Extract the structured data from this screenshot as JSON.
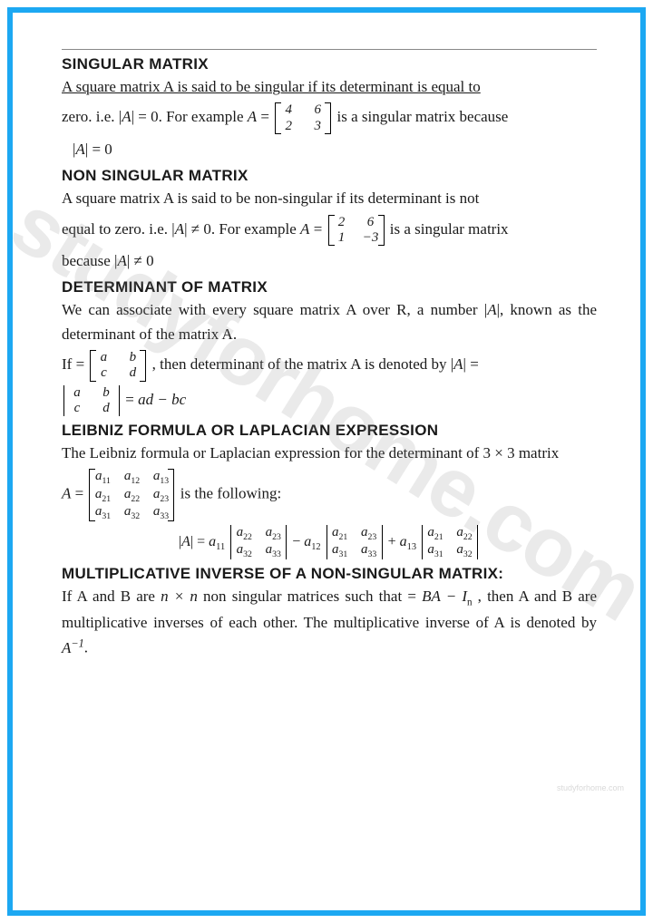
{
  "watermark_text": "studyforhome.com",
  "footer_text": "studyforhome.com",
  "sections": {
    "s1": {
      "heading": "SINGULAR MATRIX",
      "line1": "A square matrix A is said to be singular if its determinant is equal to",
      "line2a": "zero. i.e. |",
      "line2b": "| = 0. For example  ",
      "line2c": " = ",
      "line2d": " is a singular matrix because",
      "matA_r1c1": "4",
      "matA_r1c2": "6",
      "matA_r2c1": "2",
      "matA_r2c2": "3",
      "line3": " |",
      "line3b": "| = 0",
      "sym_A": "A"
    },
    "s2": {
      "heading": "NON SINGULAR MATRIX",
      "line1": "A square matrix A is said to be non-singular if its determinant is not",
      "line2a": "equal to zero. i.e. |",
      "line2b": "| ≠ 0. For example  ",
      "line2c": " = ",
      "line2d": " is a singular matrix",
      "matB_r1c1": "2",
      "matB_r1c2": "6",
      "matB_r2c1": "1",
      "matB_r2c2": "−3",
      "line3a": "because  |",
      "line3b": "| ≠ 0",
      "sym_A": "A"
    },
    "s3": {
      "heading": "DETERMINANT OF MATRIX",
      "p1": "We can associate with every square matrix A over R, a number |",
      "p1b": "|, known as the determinant of the matrix A.",
      "p2a": "If = ",
      "p2b": " , then determinant of the matrix A is denoted by |",
      "p2c": "| =",
      "m_r1c1": "a",
      "m_r1c2": "b",
      "m_r2c1": "c",
      "m_r2c2": "d",
      "p3": " = ",
      "expr": "ad − bc",
      "sym_A": "A"
    },
    "s4": {
      "heading": "LEIBNIZ FORMULA OR LAPLACIAN EXPRESSION",
      "p1": "The Leibniz formula or Laplacian expression for the determinant of 3 × 3 matrix",
      "p2a": " = ",
      "p2b": " is the following:",
      "a11": "a",
      "a12": "a",
      "a13": "a",
      "a21": "a",
      "a22": "a",
      "a23": "a",
      "a31": "a",
      "a32": "a",
      "a33": "a",
      "s11": "11",
      "s12": "12",
      "s13": "13",
      "s21": "21",
      "s22": "22",
      "s23": "23",
      "s31": "31",
      "s32": "32",
      "s33": "33",
      "eq_lhs": "|",
      "eq_lhs2": "| = ",
      "minus": " − ",
      "plus": " + ",
      "sym_A": "A"
    },
    "s5": {
      "heading": "MULTIPLICATIVE INVERSE OF A NON-SINGULAR MATRIX:",
      "p1a": "If A and B are ",
      "nxn": "n × n",
      "p1b": " non singular matrices such that = ",
      "rhs": "BA − I",
      "rhs_sub": "n",
      "p1c": " , then A and B are multiplicative inverses of each other. The multiplicative inverse of A is denoted by ",
      "ainv": "A",
      "ainv_sup": "−1",
      "p1d": "."
    }
  }
}
